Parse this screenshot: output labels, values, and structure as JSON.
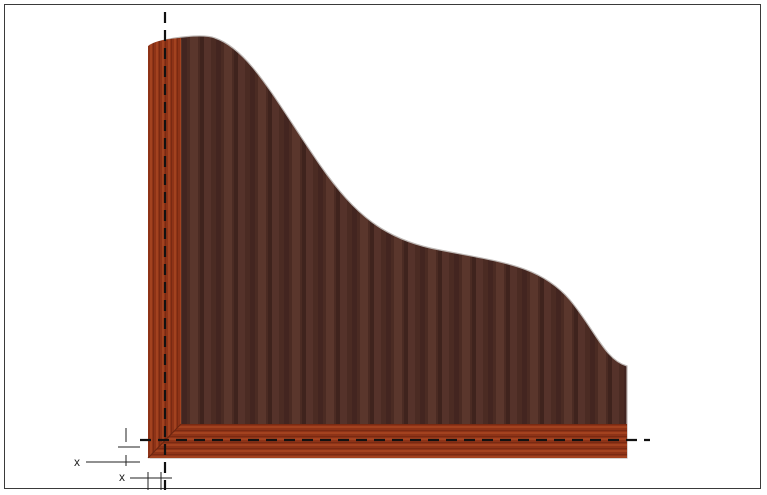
{
  "diagram": {
    "labels": {
      "x_vertical_offset": "x",
      "x_horizontal_offset": "x"
    },
    "colors": {
      "panel_dark": "#4a2a22",
      "panel_light": "#5c352b",
      "edge_band": "#8a2f14",
      "edge_band_light": "#a84420",
      "guide_line": "#111111",
      "frame_border": "#3a3a3a"
    }
  }
}
